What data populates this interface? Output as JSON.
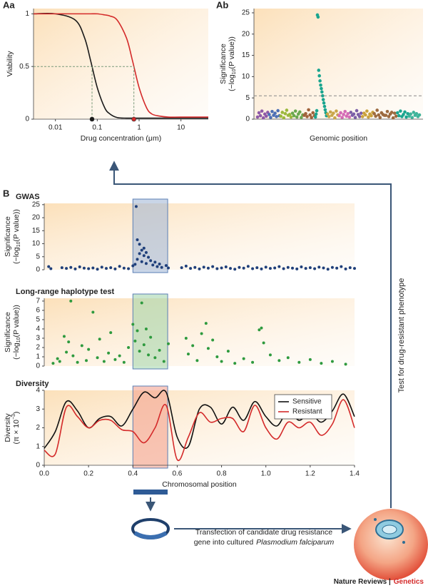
{
  "chart_data": [
    {
      "type": "line",
      "panel": "Aa",
      "xlabel": "Drug concentration (μm)",
      "ylabel": "Viability",
      "xscale": "log",
      "xlim": [
        0.003,
        45
      ],
      "xticks": [
        0.01,
        0.1,
        1,
        10
      ],
      "ylim": [
        0,
        1.05
      ],
      "yticks": [
        0,
        0.5,
        1
      ],
      "guide_y": 0.5,
      "x": [
        0.003,
        0.01,
        0.03,
        0.05,
        0.07,
        0.1,
        0.15,
        0.2,
        0.3,
        0.5,
        0.7,
        1,
        1.5,
        2,
        3,
        5,
        10,
        45
      ],
      "series": [
        {
          "color": "#1a1a1a",
          "marker_x": 0.075,
          "values": [
            1,
            1,
            0.94,
            0.77,
            0.55,
            0.3,
            0.11,
            0.05,
            0.015,
            0.01,
            0.01,
            0.01,
            0.01,
            0.01,
            0.01,
            0.01,
            0.01,
            0.01
          ]
        },
        {
          "color": "#d42a2a",
          "marker_x": 0.75,
          "values": [
            1,
            1,
            1,
            1,
            1,
            1,
            0.99,
            0.98,
            0.94,
            0.77,
            0.55,
            0.3,
            0.11,
            0.05,
            0.03,
            0.02,
            0.02,
            0.02
          ]
        }
      ]
    },
    {
      "type": "manhattan",
      "panel": "Ab",
      "xlabel": "Genomic position",
      "ylabel": "Significance",
      "ylabel_2": {
        "pre": "(−log",
        "sub": "10",
        "post": "(P value))"
      },
      "ylim": [
        0,
        26
      ],
      "yticks": [
        0,
        5,
        10,
        15,
        20,
        25
      ],
      "threshold": 5.5,
      "series": [
        {
          "color": "#8e5aa8",
          "values": [
            0.5,
            1.5,
            0.8,
            1.9,
            0.3,
            1.2,
            0.7,
            1.6
          ]
        },
        {
          "color": "#4c6fb5",
          "values": [
            1.1,
            0.4,
            1.8,
            0.9,
            1.4,
            0.6,
            2.0,
            0.8
          ]
        },
        {
          "color": "#9bb83c",
          "values": [
            0.7,
            1.6,
            0.3,
            1.3,
            2.1,
            0.9,
            1.1,
            0.5
          ]
        },
        {
          "color": "#6aa84f",
          "values": [
            1.4,
            0.8,
            1.9,
            0.5,
            1.2,
            1.7,
            0.4,
            1.0
          ]
        },
        {
          "color": "#a0623a",
          "values": [
            0.9,
            1.3,
            0.6,
            2.2,
            1.0,
            0.4,
            1.5,
            0.8
          ]
        },
        {
          "color": "#1aa58f",
          "values": [
            0.5,
            1.2,
            2.0,
            24.5,
            24.0,
            11.5,
            10.2,
            9.0,
            8.0,
            7.2,
            6.4,
            5.5,
            4.6,
            3.8,
            3.0,
            2.2,
            1.5,
            0.8
          ]
        },
        {
          "color": "#c9a64a",
          "values": [
            1.2,
            0.6,
            1.7,
            0.9,
            1.4,
            0.3,
            1.9,
            1.0
          ]
        },
        {
          "color": "#d46bb5",
          "values": [
            0.8,
            1.5,
            0.4,
            1.1,
            1.8,
            0.7,
            1.3,
            0.5
          ]
        },
        {
          "color": "#7b5ea7",
          "values": [
            1.6,
            0.9,
            1.2,
            0.4,
            2.0,
            1.1,
            0.6,
            1.4
          ]
        },
        {
          "color": "#caa23c",
          "values": [
            0.6,
            1.4,
            1.0,
            1.9,
            0.5,
            1.2,
            0.8,
            1.6
          ]
        },
        {
          "color": "#9c6a3f",
          "values": [
            1.3,
            0.7,
            2.1,
            1.0,
            0.4,
            1.5,
            1.1,
            0.9
          ]
        },
        {
          "color": "#9c6a3f",
          "values": [
            0.9,
            1.8,
            0.6,
            1.2,
            1.6,
            0.3,
            1.4,
            0.7
          ]
        },
        {
          "color": "#1aa58f",
          "values": [
            1.5,
            0.8,
            1.9,
            0.6,
            1.1,
            1.7,
            0.5,
            1.3
          ]
        },
        {
          "color": "#3fb39a",
          "values": [
            0.7,
            1.2,
            0.4,
            1.6,
            0.9,
            1.3,
            0.6,
            1.0
          ]
        }
      ]
    },
    {
      "type": "scatter",
      "panel": "B",
      "title": "GWAS",
      "ylabel": "Significance",
      "ylabel_2": {
        "pre": "(−log",
        "sub": "10",
        "post": "(P value))"
      },
      "xlim": [
        0,
        1.4
      ],
      "ylim": [
        0,
        25.5
      ],
      "yticks": [
        0,
        5,
        10,
        15,
        20,
        25
      ],
      "color": "#1f3f7a",
      "highlight": [
        0.4,
        0.557
      ],
      "highlight_color": "#9db3d4",
      "x": [
        0.02,
        0.03,
        0.08,
        0.1,
        0.12,
        0.14,
        0.16,
        0.18,
        0.2,
        0.22,
        0.24,
        0.26,
        0.28,
        0.3,
        0.32,
        0.34,
        0.36,
        0.38,
        0.4,
        0.41,
        0.415,
        0.42,
        0.42,
        0.43,
        0.43,
        0.44,
        0.44,
        0.45,
        0.45,
        0.46,
        0.46,
        0.47,
        0.48,
        0.49,
        0.5,
        0.51,
        0.52,
        0.53,
        0.55,
        0.56,
        0.62,
        0.64,
        0.66,
        0.68,
        0.7,
        0.72,
        0.74,
        0.76,
        0.78,
        0.8,
        0.82,
        0.84,
        0.86,
        0.88,
        0.9,
        0.92,
        0.94,
        0.96,
        0.98,
        1.0,
        1.02,
        1.04,
        1.06,
        1.08,
        1.1,
        1.12,
        1.14,
        1.16,
        1.18,
        1.2,
        1.22,
        1.24,
        1.26,
        1.28,
        1.3,
        1.32,
        1.34,
        1.36,
        1.38,
        1.4
      ],
      "values": [
        1.2,
        0.4,
        0.8,
        0.5,
        0.9,
        0.3,
        1.1,
        0.6,
        0.4,
        0.7,
        0.2,
        1.0,
        0.5,
        0.8,
        0.3,
        1.3,
        0.6,
        0.4,
        1.5,
        2.1,
        24.3,
        11.5,
        4.0,
        9.8,
        6.2,
        7.5,
        3.1,
        8.3,
        5.4,
        6.6,
        2.4,
        4.8,
        3.5,
        1.8,
        2.9,
        1.2,
        2.2,
        0.9,
        1.6,
        0.7,
        0.8,
        1.4,
        0.5,
        0.9,
        0.3,
        1.0,
        0.6,
        1.2,
        0.4,
        0.7,
        1.1,
        0.5,
        0.2,
        0.9,
        0.6,
        1.3,
        0.4,
        0.8,
        0.3,
        1.0,
        0.5,
        0.7,
        1.2,
        0.4,
        0.9,
        0.6,
        0.3,
        1.1,
        0.5,
        0.8,
        0.4,
        1.0,
        0.7,
        0.2,
        0.9,
        0.6,
        1.2,
        0.3,
        0.8,
        0.5
      ]
    },
    {
      "type": "scatter",
      "title": "Long-range haplotype test",
      "ylabel": "Significance",
      "ylabel_2": {
        "pre": "(−log",
        "sub": "10",
        "post": "(P value))"
      },
      "xlim": [
        0,
        1.4
      ],
      "ylim": [
        0,
        7.3
      ],
      "yticks": [
        0,
        1,
        2,
        3,
        4,
        5,
        6,
        7
      ],
      "color": "#2e9a3e",
      "highlight": [
        0.4,
        0.557
      ],
      "highlight_color": "#9fd3a8",
      "x": [
        0.04,
        0.06,
        0.07,
        0.09,
        0.1,
        0.11,
        0.12,
        0.13,
        0.15,
        0.17,
        0.19,
        0.2,
        0.22,
        0.24,
        0.25,
        0.27,
        0.29,
        0.3,
        0.32,
        0.34,
        0.36,
        0.38,
        0.4,
        0.41,
        0.42,
        0.43,
        0.44,
        0.45,
        0.46,
        0.47,
        0.48,
        0.5,
        0.52,
        0.54,
        0.56,
        0.64,
        0.65,
        0.67,
        0.69,
        0.71,
        0.73,
        0.74,
        0.76,
        0.78,
        0.8,
        0.83,
        0.86,
        0.9,
        0.94,
        0.97,
        0.98,
        0.99,
        1.02,
        1.06,
        1.1,
        1.15,
        1.2,
        1.25,
        1.3,
        1.36
      ],
      "values": [
        0.3,
        0.8,
        0.5,
        3.2,
        1.5,
        2.6,
        7.0,
        1.1,
        0.4,
        2.2,
        0.6,
        1.8,
        5.8,
        0.9,
        2.9,
        0.5,
        1.4,
        3.6,
        0.7,
        1.1,
        0.4,
        2.0,
        4.5,
        2.7,
        3.8,
        1.6,
        6.8,
        2.3,
        4.0,
        1.2,
        3.1,
        0.9,
        1.7,
        0.5,
        2.4,
        3.0,
        1.3,
        2.2,
        0.6,
        3.5,
        4.6,
        1.9,
        2.8,
        1.0,
        0.5,
        1.6,
        0.3,
        0.8,
        0.4,
        3.9,
        4.1,
        2.5,
        1.2,
        0.6,
        0.9,
        0.4,
        0.7,
        0.3,
        0.5,
        0.2
      ]
    },
    {
      "type": "line",
      "title": "Diversity",
      "xlabel": "Chromosomal position",
      "ylabel": "Diversity",
      "ylabel_2": {
        "pre": "(π × 10",
        "sup": "−3",
        "post": ")"
      },
      "xlim": [
        0,
        1.4
      ],
      "xticks": [
        {
          "value": 0,
          "label": "0.0"
        },
        0.2,
        0.4,
        0.6,
        0.8,
        {
          "value": 1,
          "label": "1.0"
        },
        1.2,
        1.4
      ],
      "ylim": [
        0,
        4
      ],
      "yticks": [
        0,
        1,
        2,
        3,
        4
      ],
      "legend": "upper right",
      "highlight": [
        0.4,
        0.557
      ],
      "highlight_color": "#f29a86",
      "x": [
        0,
        0.05,
        0.1,
        0.15,
        0.2,
        0.25,
        0.3,
        0.35,
        0.4,
        0.45,
        0.5,
        0.55,
        0.6,
        0.65,
        0.7,
        0.75,
        0.8,
        0.85,
        0.9,
        0.95,
        1.0,
        1.05,
        1.1,
        1.15,
        1.2,
        1.25,
        1.3,
        1.35,
        1.4
      ],
      "series": [
        {
          "name": "Sensitive",
          "color": "#111111",
          "values": [
            0.9,
            1.8,
            3.4,
            2.9,
            2.0,
            2.5,
            2.6,
            2.1,
            3.0,
            3.9,
            3.6,
            3.9,
            1.5,
            1.0,
            3.0,
            3.1,
            2.2,
            3.1,
            2.4,
            3.4,
            2.6,
            2.1,
            2.9,
            2.4,
            2.8,
            2.3,
            2.9,
            3.8,
            2.6
          ]
        },
        {
          "name": "Resistant",
          "color": "#d42a2a",
          "values": [
            0.8,
            0.6,
            3.1,
            2.6,
            2.0,
            2.4,
            2.4,
            1.9,
            1.8,
            1.2,
            2.0,
            3.2,
            0.3,
            1.5,
            2.8,
            2.3,
            2.5,
            2.5,
            1.8,
            3.2,
            2.0,
            1.4,
            2.3,
            2.0,
            2.3,
            1.6,
            2.2,
            3.5,
            2.0
          ]
        }
      ]
    }
  ],
  "annotations": {
    "test": "Test for drug-resistant phenotype",
    "transfection": {
      "line1": "Transfection of candidate drug resistance",
      "line2": "gene into cultured",
      "species": "Plasmodium falciparum"
    }
  },
  "footer": {
    "journal": "Nature Reviews |",
    "subject": "Genetics"
  }
}
